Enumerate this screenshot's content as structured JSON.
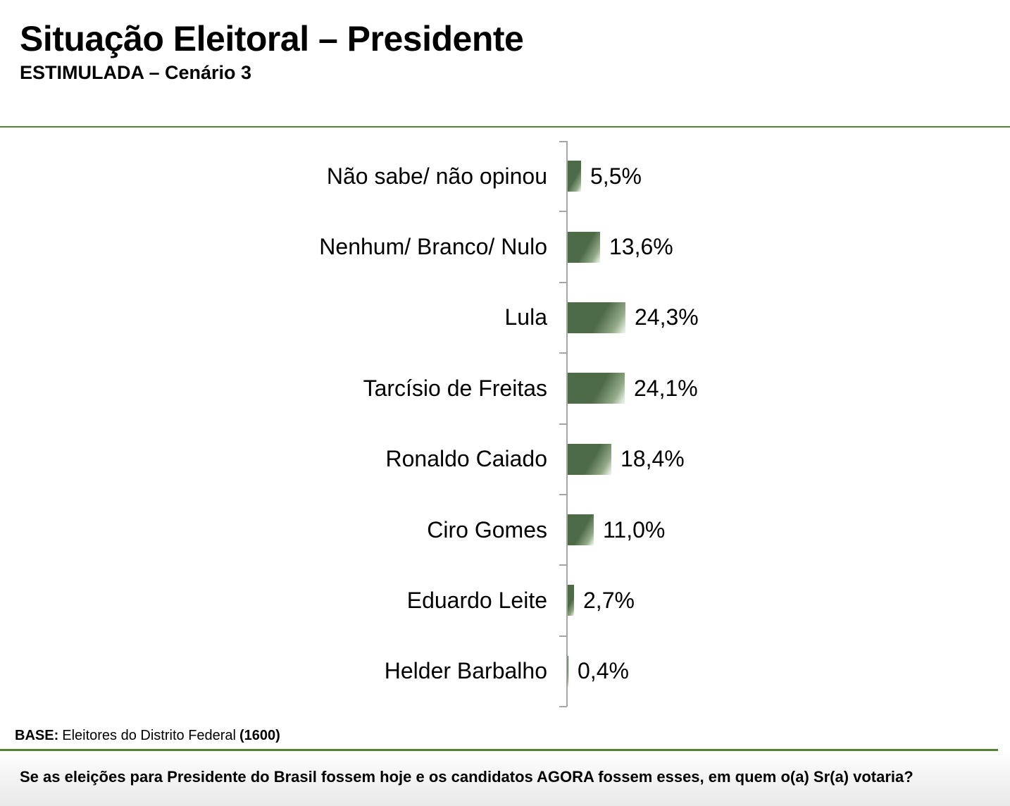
{
  "header": {
    "title": "Situação Eleitoral – Presidente",
    "subtitle": "ESTIMULADA – Cenário 3"
  },
  "base": {
    "label": "BASE:",
    "text": "Eleitores do Distrito Federal",
    "count": "(1600)"
  },
  "footer": {
    "question": "Se as eleições para Presidente do Brasil fossem hoje e os candidatos AGORA fossem esses, em quem o(a) Sr(a) votaria?"
  },
  "chart_data": {
    "type": "bar",
    "orientation": "horizontal",
    "title": "Situação Eleitoral – Presidente",
    "subtitle": "ESTIMULADA – Cenário 3",
    "categories": [
      "Não sabe/ não opinou",
      "Nenhum/ Branco/ Nulo",
      "Lula",
      "Tarcísio de Freitas",
      "Ronaldo Caiado",
      "Ciro Gomes",
      "Eduardo Leite",
      "Helder Barbalho"
    ],
    "values": [
      5.5,
      13.6,
      24.3,
      24.1,
      18.4,
      11.0,
      2.7,
      0.4
    ],
    "value_labels": [
      "5,5%",
      "13,6%",
      "24,3%",
      "24,1%",
      "18,4%",
      "11,0%",
      "2,7%",
      "0,4%"
    ],
    "unit": "%",
    "xlim": [
      0,
      30
    ],
    "grid": false,
    "legend": "none",
    "data_labels": "outside-end",
    "colors": {
      "bar_dark": "#4e6b47",
      "bar_light": "#eef3eb",
      "axis": "#a6a6a6",
      "divider_green": "#548235",
      "footer_bg_bottom": "#e9e9e9"
    }
  }
}
